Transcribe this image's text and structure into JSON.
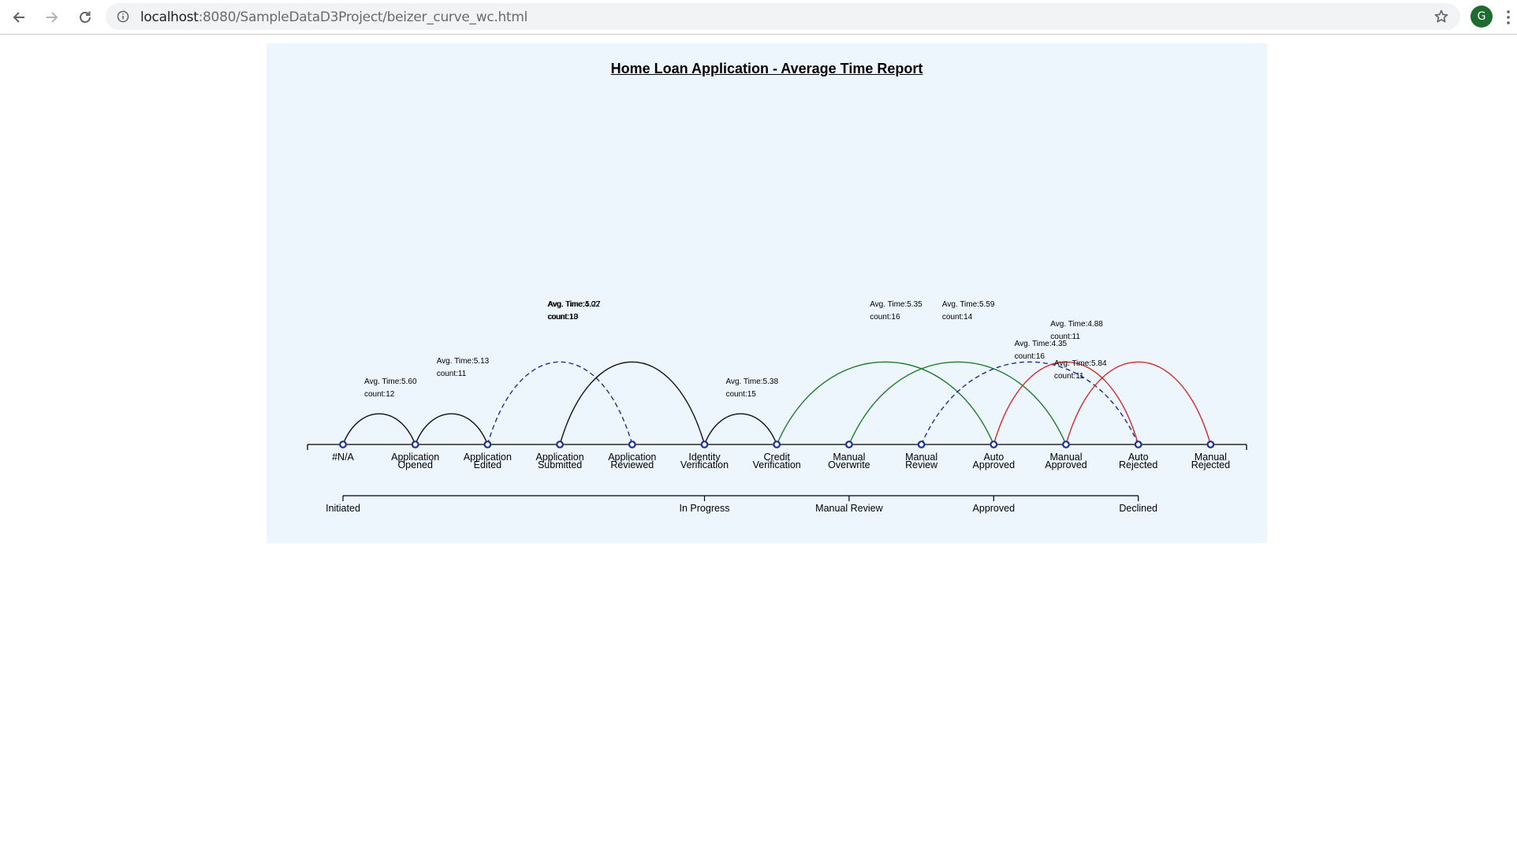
{
  "browser": {
    "url_host": "localhost",
    "url_rest": ":8080/SampleDataD3Project/beizer_curve_wc.html",
    "profile_initial": "G",
    "icons": {
      "back": "arrow-left-icon",
      "forward": "arrow-right-icon",
      "reload": "reload-icon",
      "info": "info-icon",
      "bookmark": "star-icon",
      "menu": "kebab-menu-icon"
    }
  },
  "chart_data": {
    "type": "arc diagram",
    "title": "Home Loan Application - Average Time Report",
    "nodes": [
      {
        "label": [
          "#N/A"
        ]
      },
      {
        "label": [
          "Application",
          "Opened"
        ]
      },
      {
        "label": [
          "Application",
          "Edited"
        ]
      },
      {
        "label": [
          "Application",
          "Submitted"
        ]
      },
      {
        "label": [
          "Application",
          "Reviewed"
        ]
      },
      {
        "label": [
          "Identity",
          "Verification"
        ]
      },
      {
        "label": [
          "Credit",
          "Verification"
        ]
      },
      {
        "label": [
          "Manual",
          "Overwrite"
        ]
      },
      {
        "label": [
          "Manual",
          "Review"
        ]
      },
      {
        "label": [
          "Auto",
          "Approved"
        ]
      },
      {
        "label": [
          "Manual",
          "Approved"
        ]
      },
      {
        "label": [
          "Auto",
          "Rejected"
        ]
      },
      {
        "label": [
          "Manual",
          "Rejected"
        ]
      }
    ],
    "links": [
      {
        "source": 0,
        "target": 1,
        "avg_time": "Avg. Time:5.60",
        "count": "count:12",
        "color": "#111111",
        "dashed": false
      },
      {
        "source": 1,
        "target": 2,
        "avg_time": "Avg. Time:5.13",
        "count": "count:11",
        "color": "#111111",
        "dashed": false
      },
      {
        "source": 2,
        "target": 4,
        "avg_time": "Avg. Time:4.02",
        "count": "count:13",
        "color": "#1f2e9a",
        "dashed": true
      },
      {
        "source": 3,
        "target": 5,
        "avg_time": "Avg. Time:5.27",
        "count": "count:10",
        "color": "#111111",
        "dashed": false
      },
      {
        "source": 5,
        "target": 6,
        "avg_time": "Avg. Time:5.38",
        "count": "count:15",
        "color": "#111111",
        "dashed": false
      },
      {
        "source": 6,
        "target": 9,
        "avg_time": "Avg. Time:5.35",
        "count": "count:16",
        "color": "#1e7d2a",
        "dashed": false
      },
      {
        "source": 7,
        "target": 10,
        "avg_time": "Avg. Time:5.59",
        "count": "count:14",
        "color": "#1e7d2a",
        "dashed": false
      },
      {
        "source": 8,
        "target": 11,
        "avg_time": "Avg. Time:4.35",
        "count": "count:16",
        "color": "#1f2e9a",
        "dashed": true
      },
      {
        "source": 9,
        "target": 11,
        "avg_time": "Avg. Time:4.88",
        "count": "count:11",
        "color": "#d42a2a",
        "dashed": false
      },
      {
        "source": 10,
        "target": 12,
        "avg_time": "Avg. Time:5.84",
        "count": "count:11",
        "color": "#d42a2a",
        "dashed": false
      }
    ],
    "groups": [
      {
        "label": "Initiated",
        "node": 0
      },
      {
        "label": "In Progress",
        "node": 5
      },
      {
        "label": "Manual Review",
        "node": 7
      },
      {
        "label": "Approved",
        "node": 9
      },
      {
        "label": "Declined",
        "node": 11
      }
    ],
    "node_color": "#1f2e9a"
  }
}
